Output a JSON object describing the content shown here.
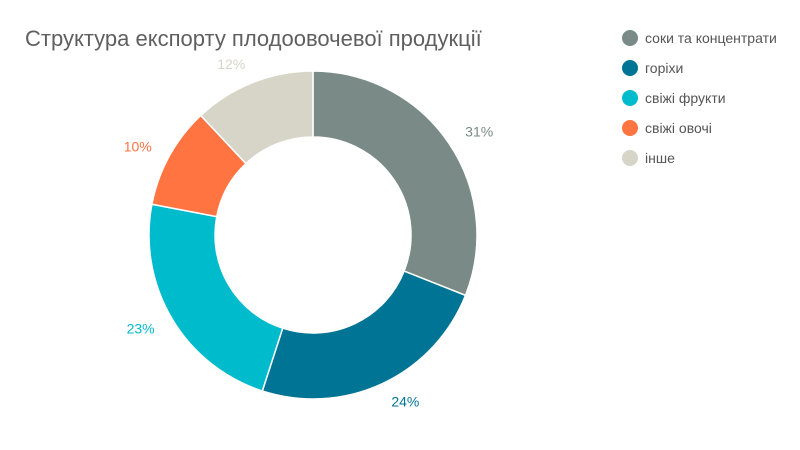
{
  "chart_data": {
    "type": "pie",
    "title": "Структура експорту плодоовочевої продукції",
    "slices": [
      {
        "name": "соки та концентрати",
        "value": 31,
        "label": "31%",
        "color": "#7a8b87"
      },
      {
        "name": "горіхи",
        "value": 24,
        "label": "24%",
        "color": "#007494"
      },
      {
        "name": "свіжі фрукти",
        "value": 23,
        "label": "23%",
        "color": "#00bbcc"
      },
      {
        "name": "свіжі овочі",
        "value": 10,
        "label": "10%",
        "color": "#ff7441"
      },
      {
        "name": "інше",
        "value": 12,
        "label": "12%",
        "color": "#d7d5c8"
      }
    ],
    "legend_position": "right"
  }
}
